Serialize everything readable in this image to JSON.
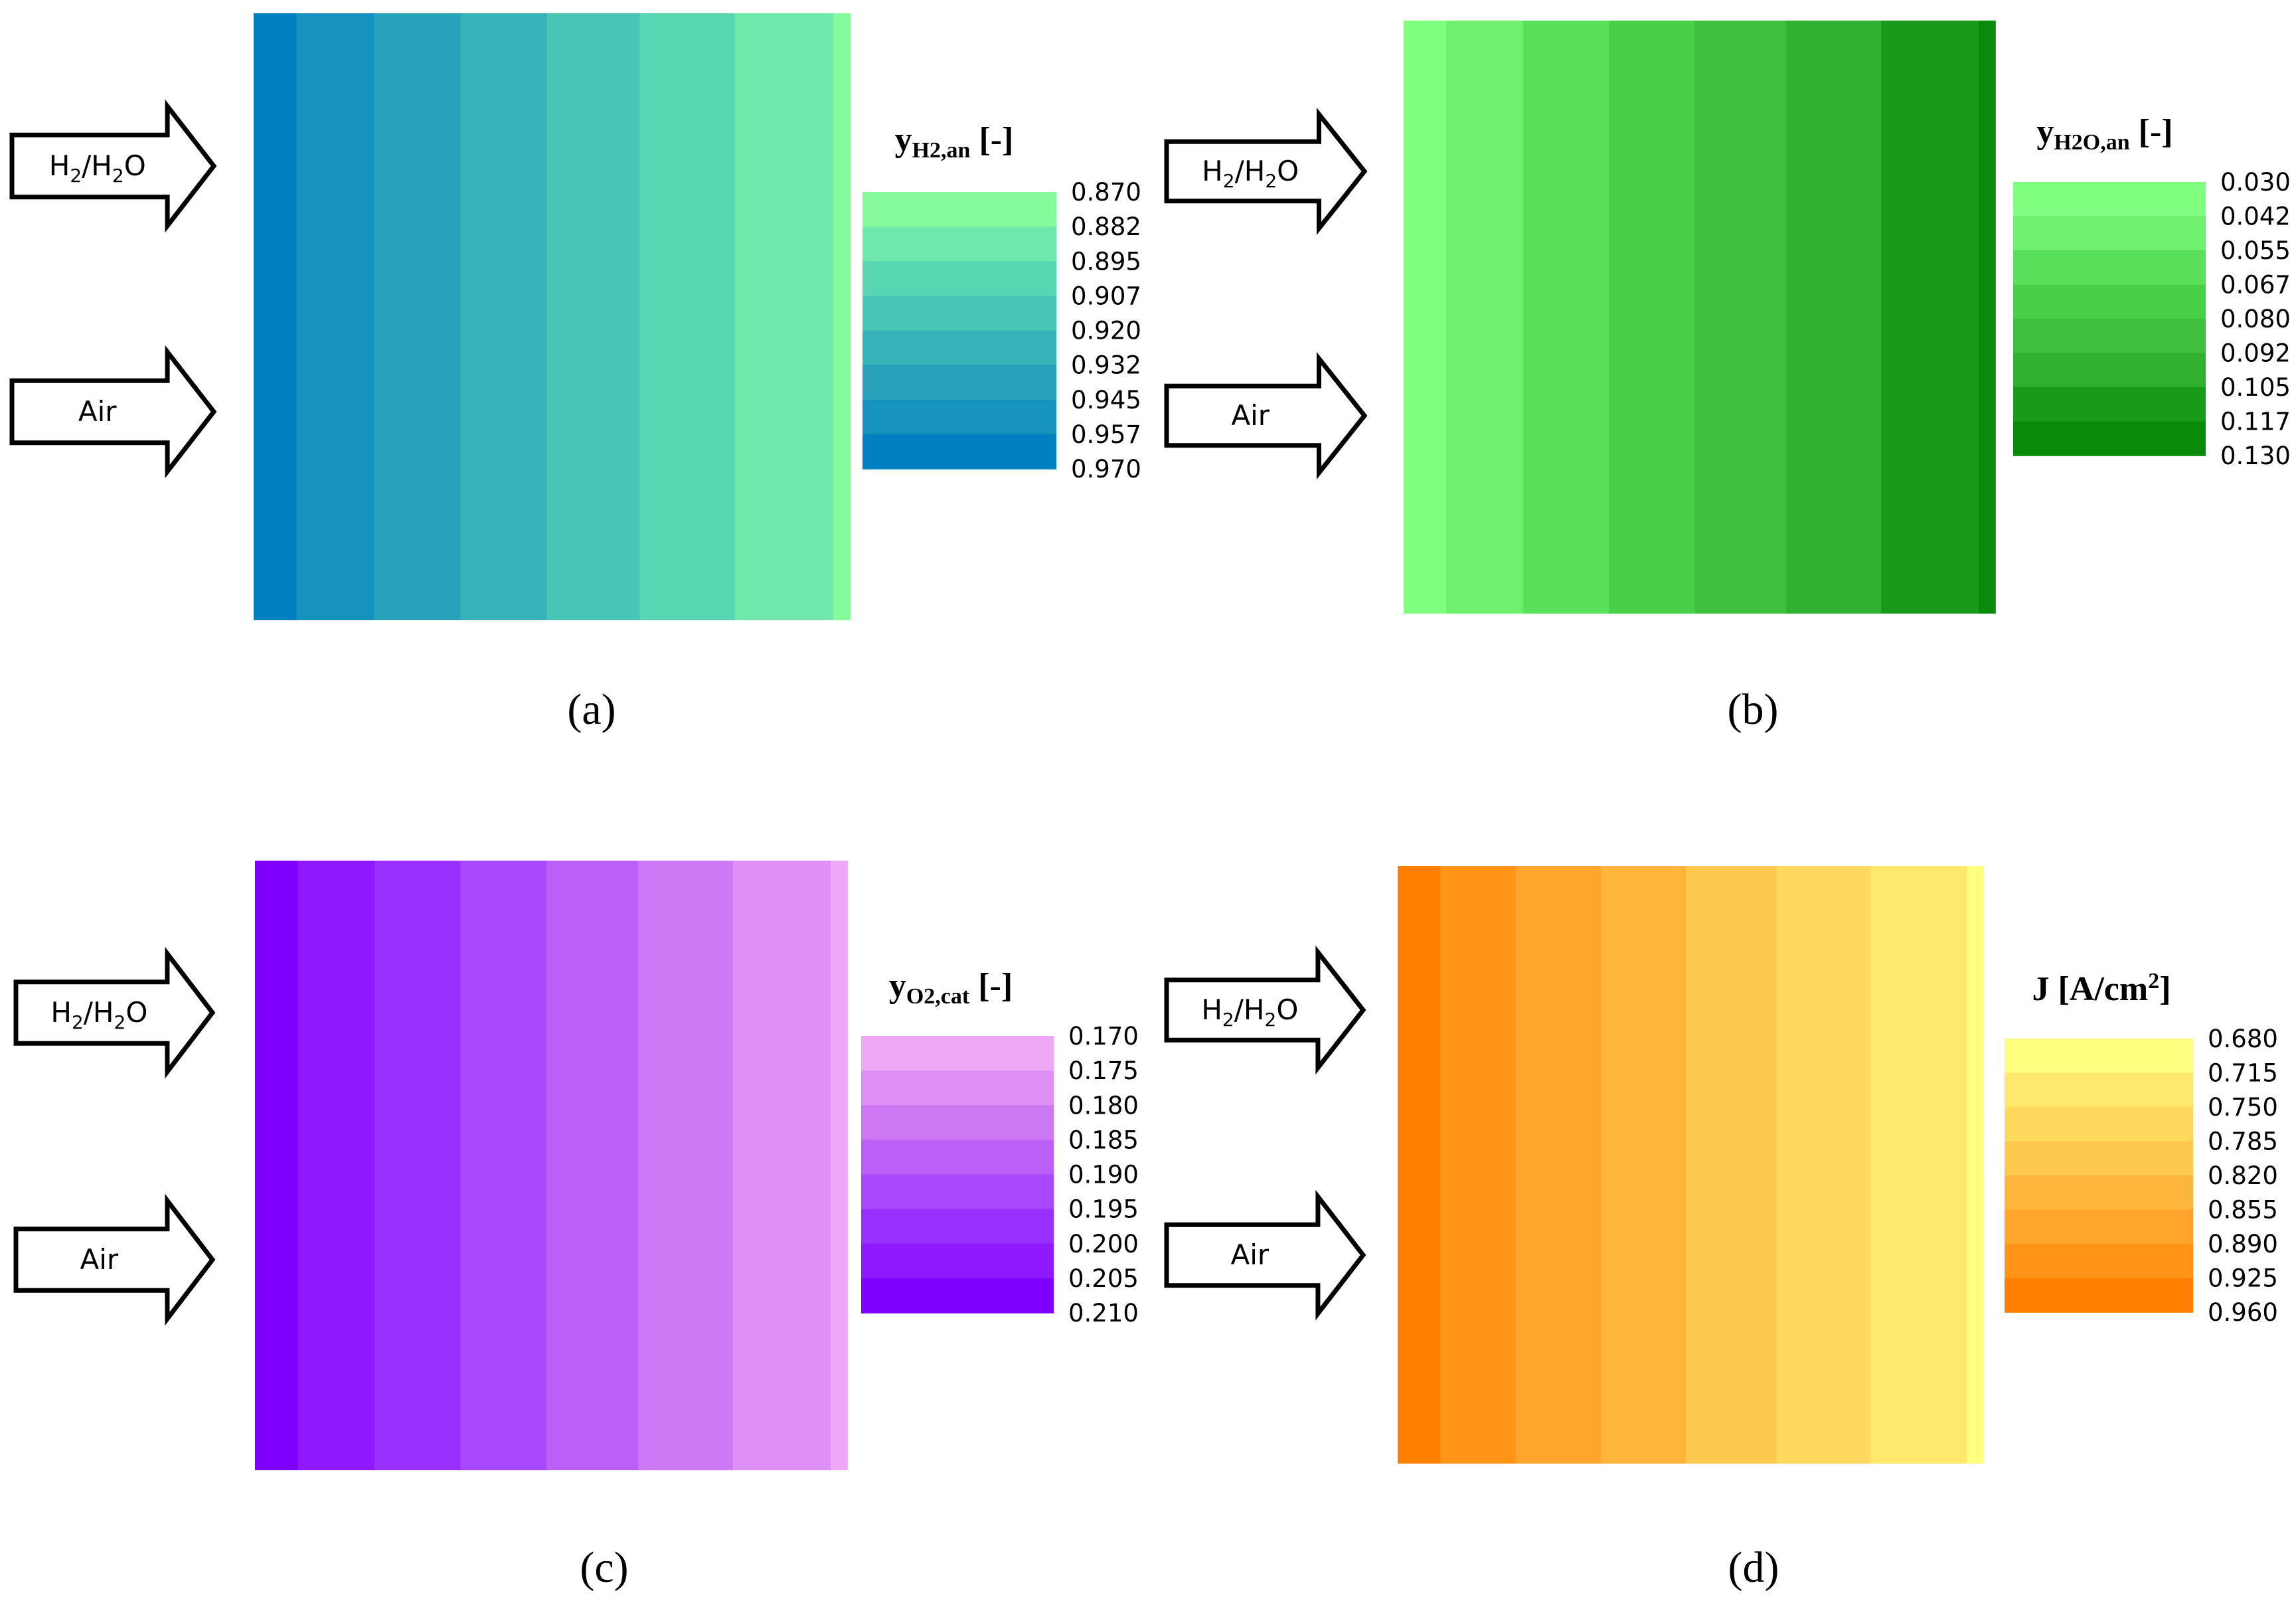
{
  "arrows": {
    "anode_label": "H2/H2O",
    "cathode_label": "Air"
  },
  "chart_data": [
    {
      "type": "heatmap",
      "caption": "(a)",
      "colorbar_title": {
        "main": "y",
        "sub": "H2,an",
        "unit": " [-]"
      },
      "colorbar_ticks": [
        "0.870",
        "0.882",
        "0.895",
        "0.907",
        "0.920",
        "0.932",
        "0.945",
        "0.957",
        "0.970"
      ],
      "values_left_to_right": [
        0.97,
        0.957,
        0.945,
        0.932,
        0.92,
        0.907,
        0.895,
        0.882
      ],
      "colors_left_to_right": [
        "#0080c0",
        "#1592bd",
        "#27a2ba",
        "#36b3b8",
        "#48c5b5",
        "#58d5b1",
        "#6fe9ab",
        "#86fb9c"
      ],
      "colorbar_colors_top_to_bottom": [
        "#86fb9c",
        "#6fe9ab",
        "#58d5b1",
        "#48c5b5",
        "#36b3b8",
        "#27a2ba",
        "#1592bd",
        "#0080c0"
      ]
    },
    {
      "type": "heatmap",
      "caption": "(b)",
      "colorbar_title": {
        "main": "y",
        "sub": "H2O,an",
        "unit": " [-]"
      },
      "colorbar_ticks": [
        "0.030",
        "0.042",
        "0.055",
        "0.067",
        "0.080",
        "0.092",
        "0.105",
        "0.117",
        "0.130"
      ],
      "values_left_to_right": [
        0.03,
        0.042,
        0.055,
        0.067,
        0.08,
        0.092,
        0.105,
        0.117
      ],
      "colors_left_to_right": [
        "#80ff80",
        "#6ef06e",
        "#5ae05a",
        "#49d049",
        "#3ec03e",
        "#30b030",
        "#1a9a1a",
        "#0a8a0a"
      ],
      "colorbar_colors_top_to_bottom": [
        "#80ff80",
        "#6ef06e",
        "#5ae05a",
        "#49d049",
        "#3ec03e",
        "#30b030",
        "#1a9a1a",
        "#0a8a0a"
      ]
    },
    {
      "type": "heatmap",
      "caption": "(c)",
      "colorbar_title": {
        "main": "y",
        "sub": "O2,cat",
        "unit": " [-]"
      },
      "colorbar_ticks": [
        "0.170",
        "0.175",
        "0.180",
        "0.185",
        "0.190",
        "0.195",
        "0.200",
        "0.205",
        "0.210"
      ],
      "values_left_to_right": [
        0.21,
        0.205,
        0.2,
        0.195,
        0.19,
        0.185,
        0.18,
        0.175
      ],
      "colors_left_to_right": [
        "#8000ff",
        "#9018ff",
        "#9a30ff",
        "#a848ff",
        "#bc5ef8",
        "#cc78f4",
        "#de90f6",
        "#eea8f6"
      ],
      "colorbar_colors_top_to_bottom": [
        "#eea8f6",
        "#de90f6",
        "#cc78f4",
        "#bc5ef8",
        "#a848ff",
        "#9a30ff",
        "#9018ff",
        "#8000ff"
      ]
    },
    {
      "type": "heatmap",
      "caption": "(d)",
      "colorbar_title": {
        "main": "J [A/cm",
        "sup": "2",
        "tail": "]"
      },
      "colorbar_ticks": [
        "0.680",
        "0.715",
        "0.750",
        "0.785",
        "0.820",
        "0.855",
        "0.890",
        "0.925",
        "0.960"
      ],
      "values_left_to_right": [
        0.96,
        0.925,
        0.89,
        0.855,
        0.82,
        0.785,
        0.75,
        0.715
      ],
      "colors_left_to_right": [
        "#ff8000",
        "#ff9418",
        "#ffa52c",
        "#ffb53c",
        "#ffc84e",
        "#ffd85e",
        "#ffe86e",
        "#ffff80"
      ],
      "colorbar_colors_top_to_bottom": [
        "#ffff80",
        "#ffe86e",
        "#ffd85e",
        "#ffc84e",
        "#ffb53c",
        "#ffa52c",
        "#ff9418",
        "#ff8000"
      ]
    }
  ]
}
